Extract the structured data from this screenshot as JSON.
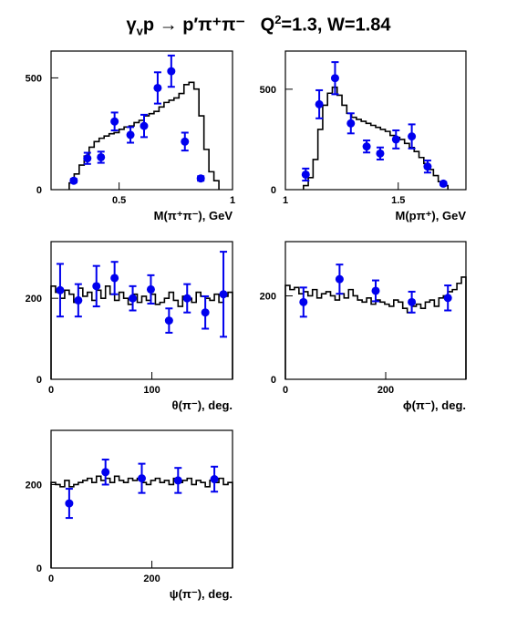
{
  "title": {
    "gamma": "γ",
    "sub": "v",
    "reaction": "p → p′π⁺π⁻",
    "q_label": "Q",
    "q_power": "2",
    "rest": "=1.3, W=1.84"
  },
  "colors": {
    "data_points": "#0000ee",
    "model_histogram": "#000000",
    "axes": "#000000"
  },
  "chart_data": [
    {
      "id": "m_pipi",
      "type": "scatter",
      "xlabel": "M(π⁺π⁻), GeV",
      "xlim": [
        0.2,
        1.0
      ],
      "ylim": [
        0,
        620
      ],
      "x_ticks": [
        {
          "value": 0.5,
          "label": "0.5"
        },
        {
          "value": 1.0,
          "label": "1"
        }
      ],
      "y_ticks": [
        {
          "value": 0,
          "label": "0"
        },
        {
          "value": 500,
          "label": "500"
        }
      ],
      "model_histogram": {
        "x_min": 0.28,
        "x_max": 0.94,
        "values": [
          30,
          70,
          110,
          150,
          190,
          215,
          230,
          240,
          250,
          255,
          270,
          280,
          285,
          300,
          310,
          330,
          340,
          350,
          370,
          390,
          400,
          410,
          430,
          470,
          480,
          450,
          330,
          180,
          80,
          40
        ]
      },
      "points": [
        {
          "x": 0.3,
          "y": 40,
          "err": 8
        },
        {
          "x": 0.36,
          "y": 140,
          "err": 25
        },
        {
          "x": 0.42,
          "y": 145,
          "err": 25
        },
        {
          "x": 0.48,
          "y": 305,
          "err": 40
        },
        {
          "x": 0.55,
          "y": 245,
          "err": 35
        },
        {
          "x": 0.61,
          "y": 285,
          "err": 50
        },
        {
          "x": 0.67,
          "y": 455,
          "err": 70
        },
        {
          "x": 0.73,
          "y": 530,
          "err": 70
        },
        {
          "x": 0.79,
          "y": 215,
          "err": 40
        },
        {
          "x": 0.86,
          "y": 50,
          "err": 10
        }
      ]
    },
    {
      "id": "m_ppi",
      "type": "scatter",
      "xlabel": "M(pπ⁺), GeV",
      "xlim": [
        1.0,
        1.8
      ],
      "ylim": [
        0,
        690
      ],
      "x_ticks": [
        {
          "value": 1.0,
          "label": "1"
        },
        {
          "value": 1.5,
          "label": "1.5"
        }
      ],
      "y_ticks": [
        {
          "value": 0,
          "label": "0"
        },
        {
          "value": 500,
          "label": "500"
        }
      ],
      "model_histogram": {
        "x_min": 1.08,
        "x_max": 1.72,
        "values": [
          20,
          60,
          150,
          300,
          420,
          480,
          510,
          470,
          420,
          380,
          360,
          350,
          340,
          330,
          320,
          310,
          300,
          290,
          270,
          260,
          250,
          230,
          210,
          190,
          160,
          130,
          100,
          70,
          40,
          20
        ]
      },
      "points": [
        {
          "x": 1.09,
          "y": 75,
          "err": 30
        },
        {
          "x": 1.15,
          "y": 425,
          "err": 70
        },
        {
          "x": 1.22,
          "y": 555,
          "err": 80
        },
        {
          "x": 1.29,
          "y": 330,
          "err": 50
        },
        {
          "x": 1.36,
          "y": 215,
          "err": 30
        },
        {
          "x": 1.42,
          "y": 180,
          "err": 30
        },
        {
          "x": 1.49,
          "y": 250,
          "err": 45
        },
        {
          "x": 1.56,
          "y": 265,
          "err": 60
        },
        {
          "x": 1.63,
          "y": 115,
          "err": 30
        },
        {
          "x": 1.7,
          "y": 30,
          "err": 8
        }
      ]
    },
    {
      "id": "theta",
      "type": "scatter",
      "xlabel": "θ(π⁻), deg.",
      "xlim": [
        0,
        180
      ],
      "ylim": [
        0,
        340
      ],
      "x_ticks": [
        {
          "value": 0,
          "label": "0"
        },
        {
          "value": 100,
          "label": "100"
        }
      ],
      "y_ticks": [
        {
          "value": 0,
          "label": "0"
        },
        {
          "value": 200,
          "label": "200"
        }
      ],
      "model_histogram": {
        "x_min": 0,
        "x_max": 180,
        "values": [
          230,
          215,
          200,
          220,
          210,
          190,
          225,
          205,
          215,
          195,
          220,
          200,
          230,
          210,
          195,
          215,
          200,
          185,
          210,
          190,
          205,
          195,
          210,
          185,
          190,
          200,
          215,
          195,
          180,
          205,
          200,
          190,
          215,
          205,
          200,
          195,
          210,
          190,
          205,
          215
        ]
      },
      "points": [
        {
          "x": 9,
          "y": 220,
          "err": 65
        },
        {
          "x": 27,
          "y": 195,
          "err": 40
        },
        {
          "x": 45,
          "y": 230,
          "err": 50
        },
        {
          "x": 63,
          "y": 250,
          "err": 40
        },
        {
          "x": 81,
          "y": 200,
          "err": 30
        },
        {
          "x": 99,
          "y": 222,
          "err": 35
        },
        {
          "x": 117,
          "y": 145,
          "err": 30
        },
        {
          "x": 135,
          "y": 200,
          "err": 35
        },
        {
          "x": 153,
          "y": 165,
          "err": 40
        },
        {
          "x": 171,
          "y": 210,
          "err": 105
        }
      ]
    },
    {
      "id": "phi",
      "type": "scatter",
      "xlabel": "ϕ(π⁻), deg.",
      "xlim": [
        0,
        360
      ],
      "ylim": [
        0,
        330
      ],
      "x_ticks": [
        {
          "value": 0,
          "label": "0"
        },
        {
          "value": 200,
          "label": "200"
        }
      ],
      "y_ticks": [
        {
          "value": 0,
          "label": "0"
        },
        {
          "value": 200,
          "label": "200"
        }
      ],
      "model_histogram": {
        "x_min": 0,
        "x_max": 360,
        "values": [
          225,
          215,
          220,
          205,
          210,
          200,
          215,
          195,
          205,
          210,
          200,
          190,
          205,
          195,
          215,
          200,
          190,
          185,
          195,
          180,
          190,
          185,
          180,
          175,
          190,
          185,
          170,
          160,
          175,
          180,
          170,
          185,
          190,
          175,
          195,
          200,
          210,
          215,
          230,
          245
        ]
      },
      "points": [
        {
          "x": 36,
          "y": 185,
          "err": 35
        },
        {
          "x": 108,
          "y": 240,
          "err": 35
        },
        {
          "x": 180,
          "y": 212,
          "err": 25
        },
        {
          "x": 252,
          "y": 185,
          "err": 25
        },
        {
          "x": 324,
          "y": 195,
          "err": 30
        }
      ]
    },
    {
      "id": "psi",
      "type": "scatter",
      "xlabel": "ψ(π⁻), deg.",
      "xlim": [
        0,
        360
      ],
      "ylim": [
        0,
        330
      ],
      "x_ticks": [
        {
          "value": 0,
          "label": "0"
        },
        {
          "value": 200,
          "label": "200"
        }
      ],
      "y_ticks": [
        {
          "value": 0,
          "label": "0"
        },
        {
          "value": 200,
          "label": "200"
        }
      ],
      "model_histogram": {
        "x_min": 0,
        "x_max": 360,
        "values": [
          205,
          200,
          195,
          210,
          195,
          200,
          205,
          210,
          215,
          205,
          220,
          210,
          215,
          205,
          220,
          210,
          205,
          215,
          210,
          215,
          205,
          200,
          210,
          215,
          205,
          210,
          200,
          215,
          205,
          210,
          215,
          200,
          210,
          205,
          195,
          210,
          205,
          215,
          200,
          205
        ]
      },
      "points": [
        {
          "x": 36,
          "y": 155,
          "err": 35
        },
        {
          "x": 108,
          "y": 230,
          "err": 30
        },
        {
          "x": 180,
          "y": 215,
          "err": 35
        },
        {
          "x": 252,
          "y": 210,
          "err": 30
        },
        {
          "x": 324,
          "y": 213,
          "err": 30
        }
      ]
    }
  ]
}
